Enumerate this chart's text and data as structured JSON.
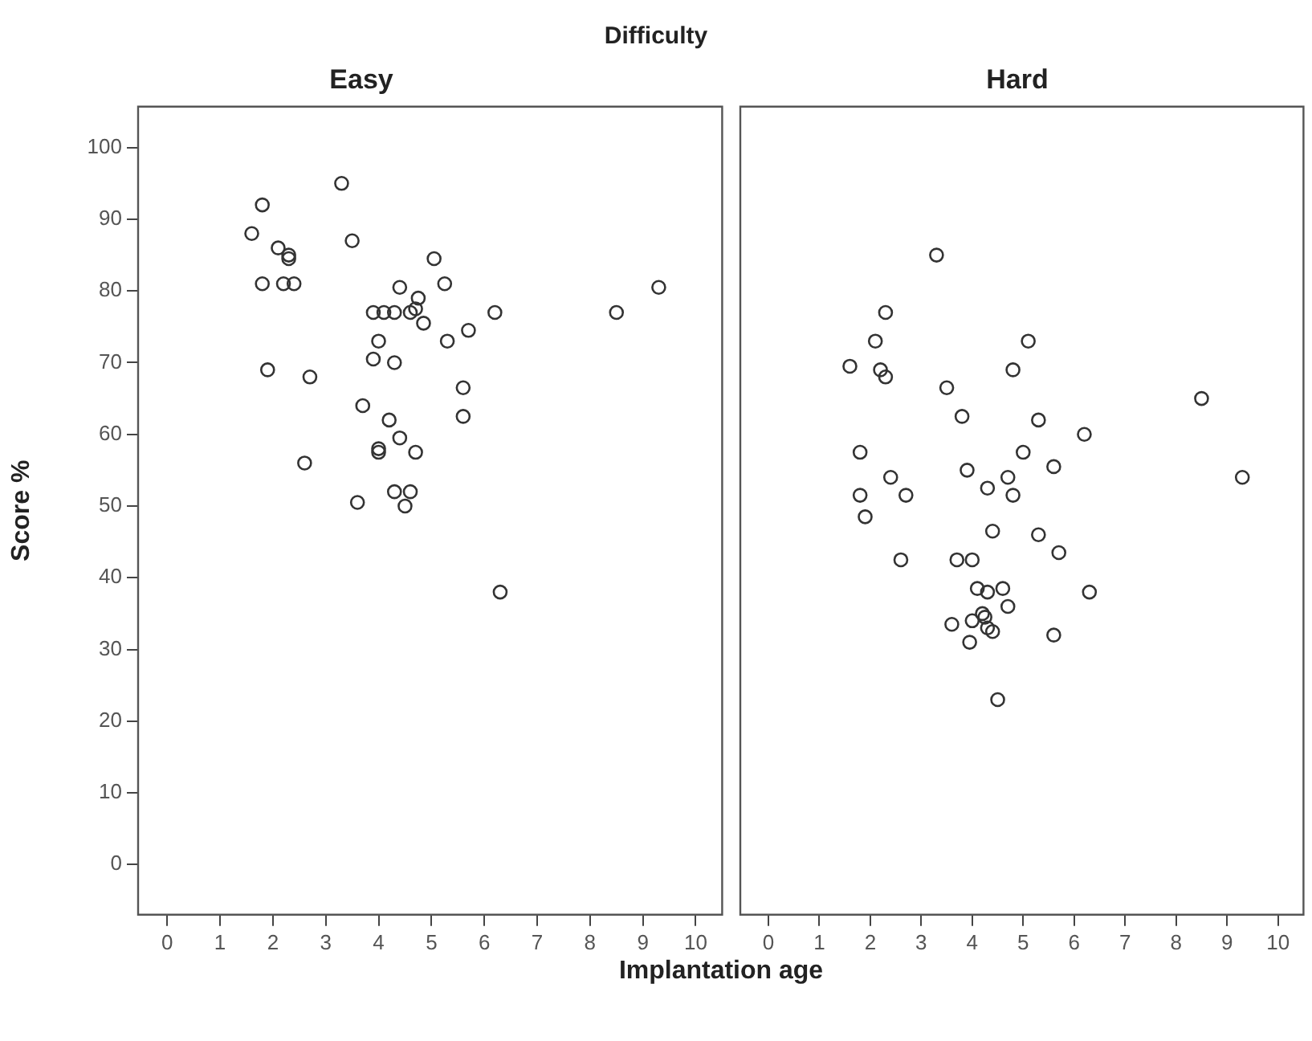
{
  "chart_data": [
    {
      "type": "scatter",
      "title": "Easy",
      "annotations": [
        "Difficulty"
      ],
      "xlabel": "Implantation age",
      "ylabel": "Score %",
      "marker": "circle",
      "grid": false,
      "xlim": [
        -0.55,
        10.5
      ],
      "xticks": [
        0,
        1,
        2,
        3,
        4,
        5,
        6,
        7,
        8,
        9,
        10
      ],
      "ylim": [
        -7,
        105.7
      ],
      "yticks": [
        0,
        10,
        20,
        30,
        40,
        50,
        60,
        70,
        80,
        90,
        100
      ],
      "series": [
        {
          "color": "#333333",
          "x": [
            1.6,
            1.8,
            2.1,
            2.3,
            2.3,
            1.8,
            2.2,
            2.4,
            1.9,
            2.7,
            2.6,
            3.3,
            3.5,
            3.7,
            3.6,
            3.9,
            4.1,
            4.3,
            4.0,
            3.9,
            4.3,
            4.4,
            4.2,
            4.4,
            4.0,
            4.0,
            4.3,
            4.6,
            4.5,
            4.7,
            4.6,
            4.7,
            4.75,
            4.85,
            5.05,
            5.25,
            5.3,
            5.7,
            5.6,
            5.6,
            6.2,
            6.3,
            8.5,
            9.3
          ],
          "values": [
            88,
            92,
            86,
            85,
            84.5,
            81,
            81,
            81,
            69,
            68,
            56,
            95,
            87,
            64,
            50.5,
            77,
            77,
            77,
            73,
            70.5,
            70,
            80.5,
            62,
            59.5,
            58,
            57.5,
            52,
            52,
            50,
            57.5,
            77,
            77.5,
            79,
            75.5,
            84.5,
            81,
            73,
            74.5,
            66.5,
            62.5,
            77,
            38,
            77,
            80.5
          ]
        }
      ]
    },
    {
      "type": "scatter",
      "title": "Hard",
      "marker": "circle",
      "grid": false,
      "tick_labels": "x",
      "xlim": [
        -0.55,
        10.5
      ],
      "xticks": [
        0,
        1,
        2,
        3,
        4,
        5,
        6,
        7,
        8,
        9,
        10
      ],
      "ylim": [
        -7,
        105.7
      ],
      "yticks": [
        0,
        10,
        20,
        30,
        40,
        50,
        60,
        70,
        80,
        90,
        100
      ],
      "series": [
        {
          "color": "#333333",
          "x": [
            3.3,
            2.3,
            2.1,
            2.2,
            2.3,
            1.6,
            3.5,
            5.1,
            4.8,
            3.8,
            5.3,
            6.2,
            8.5,
            9.3,
            1.8,
            1.8,
            1.9,
            2.4,
            2.7,
            3.9,
            4.3,
            4.7,
            4.8,
            5.0,
            5.6,
            2.6,
            3.7,
            4.0,
            4.4,
            5.3,
            5.7,
            4.1,
            4.3,
            4.6,
            4.7,
            6.3,
            3.6,
            4.0,
            4.2,
            4.3,
            4.4,
            3.95,
            5.6,
            4.5,
            4.25
          ],
          "values": [
            85,
            77,
            73,
            69,
            68,
            69.5,
            66.5,
            73,
            69,
            62.5,
            62,
            60,
            65,
            54,
            57.5,
            51.5,
            48.5,
            54,
            51.5,
            55,
            52.5,
            54,
            51.5,
            57.5,
            55.5,
            42.5,
            42.5,
            42.5,
            46.5,
            46,
            43.5,
            38.5,
            38,
            38.5,
            36,
            38,
            33.5,
            34,
            35,
            33,
            32.5,
            31,
            32,
            23,
            34.5
          ]
        }
      ]
    }
  ]
}
